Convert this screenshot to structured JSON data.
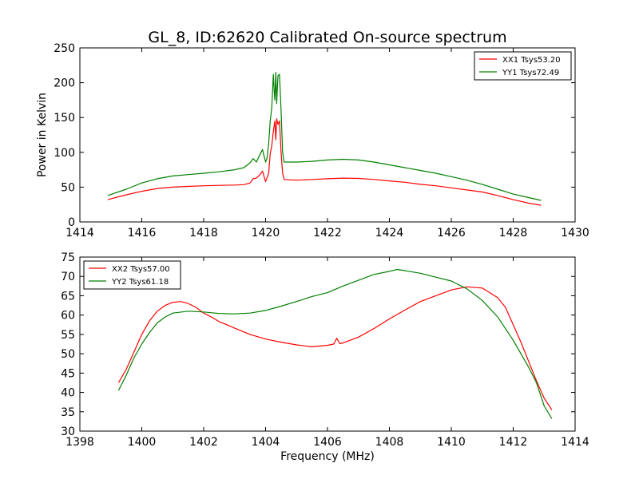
{
  "title": "GL_8, ID:62620 Calibrated On-source spectrum",
  "chart_data": [
    {
      "type": "line",
      "title": "GL_8, ID:62620 Calibrated On-source spectrum",
      "xlabel": "",
      "ylabel": "Power in Kelvin",
      "xlim": [
        1414,
        1430
      ],
      "ylim": [
        0,
        250
      ],
      "xticks": [
        1414,
        1416,
        1418,
        1420,
        1422,
        1424,
        1426,
        1428,
        1430
      ],
      "yticks": [
        0,
        50,
        100,
        150,
        200,
        250
      ],
      "legend_position": "top-right",
      "grid": false,
      "series": [
        {
          "name": "XX1 Tsys53.20",
          "color": "#ff0000",
          "points": [
            [
              1414.9,
              32
            ],
            [
              1415.5,
              39
            ],
            [
              1416.0,
              44
            ],
            [
              1416.5,
              48
            ],
            [
              1417.0,
              50
            ],
            [
              1417.5,
              51
            ],
            [
              1418.0,
              52
            ],
            [
              1418.5,
              52.5
            ],
            [
              1419.0,
              53
            ],
            [
              1419.3,
              53.5
            ],
            [
              1419.5,
              56
            ],
            [
              1419.6,
              62
            ],
            [
              1419.7,
              63
            ],
            [
              1419.8,
              67
            ],
            [
              1419.9,
              73
            ],
            [
              1420.0,
              58
            ],
            [
              1420.1,
              70
            ],
            [
              1420.15,
              98
            ],
            [
              1420.2,
              110
            ],
            [
              1420.25,
              130
            ],
            [
              1420.3,
              145
            ],
            [
              1420.33,
              118
            ],
            [
              1420.36,
              148
            ],
            [
              1420.4,
              140
            ],
            [
              1420.45,
              145
            ],
            [
              1420.5,
              100
            ],
            [
              1420.55,
              70
            ],
            [
              1420.6,
              61
            ],
            [
              1421.0,
              60
            ],
            [
              1421.5,
              61
            ],
            [
              1422.0,
              62
            ],
            [
              1422.5,
              63
            ],
            [
              1423.0,
              62.5
            ],
            [
              1423.5,
              61
            ],
            [
              1424.0,
              59
            ],
            [
              1424.5,
              57
            ],
            [
              1425.0,
              54
            ],
            [
              1425.5,
              52
            ],
            [
              1426.0,
              49
            ],
            [
              1426.5,
              46
            ],
            [
              1427.0,
              43
            ],
            [
              1427.5,
              38
            ],
            [
              1428.0,
              32
            ],
            [
              1428.5,
              27
            ],
            [
              1428.9,
              24
            ]
          ]
        },
        {
          "name": "YY1 Tsys72.49",
          "color": "#008000",
          "points": [
            [
              1414.9,
              38
            ],
            [
              1415.5,
              47
            ],
            [
              1416.0,
              56
            ],
            [
              1416.5,
              62
            ],
            [
              1417.0,
              66
            ],
            [
              1417.5,
              68
            ],
            [
              1418.0,
              70
            ],
            [
              1418.5,
              72
            ],
            [
              1419.0,
              75
            ],
            [
              1419.3,
              78
            ],
            [
              1419.5,
              85
            ],
            [
              1419.6,
              91
            ],
            [
              1419.7,
              86
            ],
            [
              1419.8,
              95
            ],
            [
              1419.9,
              104
            ],
            [
              1420.0,
              86
            ],
            [
              1420.05,
              92
            ],
            [
              1420.1,
              113
            ],
            [
              1420.15,
              145
            ],
            [
              1420.2,
              165
            ],
            [
              1420.25,
              212
            ],
            [
              1420.28,
              188
            ],
            [
              1420.3,
              175
            ],
            [
              1420.33,
              215
            ],
            [
              1420.36,
              170
            ],
            [
              1420.4,
              210
            ],
            [
              1420.45,
              212
            ],
            [
              1420.5,
              160
            ],
            [
              1420.55,
              100
            ],
            [
              1420.6,
              86
            ],
            [
              1421.0,
              86
            ],
            [
              1421.5,
              87
            ],
            [
              1422.0,
              89
            ],
            [
              1422.5,
              90
            ],
            [
              1423.0,
              89
            ],
            [
              1423.5,
              86
            ],
            [
              1424.0,
              82
            ],
            [
              1424.5,
              78
            ],
            [
              1425.0,
              74
            ],
            [
              1425.5,
              70
            ],
            [
              1426.0,
              65
            ],
            [
              1426.5,
              60
            ],
            [
              1427.0,
              54
            ],
            [
              1427.5,
              47
            ],
            [
              1428.0,
              40
            ],
            [
              1428.5,
              35
            ],
            [
              1428.9,
              31
            ]
          ]
        }
      ]
    },
    {
      "type": "line",
      "title": "",
      "xlabel": "Frequency (MHz)",
      "ylabel": "",
      "xlim": [
        1398,
        1414
      ],
      "ylim": [
        30,
        75
      ],
      "xticks": [
        1398,
        1400,
        1402,
        1404,
        1406,
        1408,
        1410,
        1412,
        1414
      ],
      "yticks": [
        30,
        35,
        40,
        45,
        50,
        55,
        60,
        65,
        70,
        75
      ],
      "legend_position": "top-left",
      "grid": false,
      "series": [
        {
          "name": "XX2 Tsys57.00",
          "color": "#ff0000",
          "points": [
            [
              1399.25,
              42.5
            ],
            [
              1399.5,
              46
            ],
            [
              1399.75,
              50.5
            ],
            [
              1400.0,
              55
            ],
            [
              1400.25,
              58.5
            ],
            [
              1400.5,
              61
            ],
            [
              1400.75,
              62.5
            ],
            [
              1401.0,
              63.3
            ],
            [
              1401.25,
              63.5
            ],
            [
              1401.5,
              63
            ],
            [
              1401.75,
              62
            ],
            [
              1402.0,
              60.5
            ],
            [
              1402.25,
              59.5
            ],
            [
              1402.5,
              58.3
            ],
            [
              1402.75,
              57.5
            ],
            [
              1403.0,
              56.6
            ],
            [
              1403.5,
              55
            ],
            [
              1404.0,
              53.8
            ],
            [
              1404.5,
              53
            ],
            [
              1405.0,
              52.3
            ],
            [
              1405.5,
              51.8
            ],
            [
              1406.0,
              52.2
            ],
            [
              1406.2,
              52.5
            ],
            [
              1406.3,
              54
            ],
            [
              1406.4,
              52.6
            ],
            [
              1406.5,
              52.8
            ],
            [
              1407.0,
              54.3
            ],
            [
              1407.5,
              56.5
            ],
            [
              1408.0,
              59
            ],
            [
              1408.5,
              61.3
            ],
            [
              1409.0,
              63.5
            ],
            [
              1409.5,
              65
            ],
            [
              1410.0,
              66.5
            ],
            [
              1410.5,
              67.3
            ],
            [
              1411.0,
              67
            ],
            [
              1411.5,
              64.5
            ],
            [
              1411.75,
              62
            ],
            [
              1412.0,
              57.5
            ],
            [
              1412.25,
              53
            ],
            [
              1412.5,
              48
            ],
            [
              1412.75,
              43
            ],
            [
              1413.0,
              38.5
            ],
            [
              1413.25,
              35.5
            ]
          ]
        },
        {
          "name": "YY2 Tsys61.18",
          "color": "#008000",
          "points": [
            [
              1399.25,
              40.5
            ],
            [
              1399.5,
              44.5
            ],
            [
              1399.75,
              49
            ],
            [
              1400.0,
              52.5
            ],
            [
              1400.25,
              55.5
            ],
            [
              1400.5,
              58
            ],
            [
              1400.75,
              59.5
            ],
            [
              1401.0,
              60.5
            ],
            [
              1401.5,
              61
            ],
            [
              1402.0,
              60.8
            ],
            [
              1402.5,
              60.4
            ],
            [
              1403.0,
              60.3
            ],
            [
              1403.5,
              60.5
            ],
            [
              1404.0,
              61.2
            ],
            [
              1404.5,
              62.3
            ],
            [
              1405.0,
              63.5
            ],
            [
              1405.5,
              64.8
            ],
            [
              1406.0,
              65.8
            ],
            [
              1406.5,
              67.5
            ],
            [
              1407.0,
              69
            ],
            [
              1407.5,
              70.5
            ],
            [
              1408.0,
              71.3
            ],
            [
              1408.25,
              71.8
            ],
            [
              1408.5,
              71.5
            ],
            [
              1409.0,
              70.8
            ],
            [
              1409.5,
              69.8
            ],
            [
              1410.0,
              68.8
            ],
            [
              1410.5,
              66.8
            ],
            [
              1411.0,
              63.8
            ],
            [
              1411.5,
              59.5
            ],
            [
              1412.0,
              53.5
            ],
            [
              1412.5,
              46.5
            ],
            [
              1412.75,
              42.5
            ],
            [
              1413.0,
              36.5
            ],
            [
              1413.25,
              33.2
            ]
          ]
        }
      ]
    }
  ]
}
